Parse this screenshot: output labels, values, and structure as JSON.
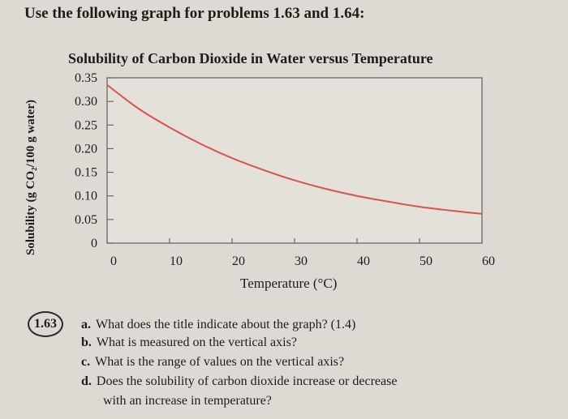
{
  "heading": "Use the following graph for problems 1.63 and 1.64:",
  "chart_data": {
    "type": "line",
    "title": "Solubility of Carbon Dioxide in Water versus Temperature",
    "xlabel": "Temperature (°C)",
    "ylabel": "Solubility (g CO₂/100 g water)",
    "xlim": [
      0,
      60
    ],
    "ylim": [
      0,
      0.35
    ],
    "x_ticks": [
      "0",
      "10",
      "20",
      "30",
      "40",
      "50",
      "60"
    ],
    "y_ticks": [
      "0",
      "0.05",
      "0.10",
      "0.15",
      "0.20",
      "0.25",
      "0.30",
      "0.35"
    ],
    "grid": false,
    "series": [
      {
        "color": "#d9534f",
        "x": [
          0,
          5,
          10,
          15,
          20,
          25,
          30,
          35,
          40,
          45,
          50,
          55,
          60
        ],
        "y": [
          0.335,
          0.285,
          0.245,
          0.21,
          0.18,
          0.155,
          0.133,
          0.115,
          0.1,
          0.088,
          0.077,
          0.069,
          0.062
        ]
      }
    ]
  },
  "problem": {
    "number": "1.63",
    "questions": [
      {
        "letter": "a.",
        "text": "What does the title indicate about the graph? (1.4)"
      },
      {
        "letter": "b.",
        "text": "What is measured on the vertical axis?"
      },
      {
        "letter": "c.",
        "text": "What is the range of values on the vertical axis?"
      },
      {
        "letter": "d.",
        "text": "Does the solubility of carbon dioxide increase or decrease"
      },
      {
        "letter": "",
        "text": "with an increase in temperature?"
      }
    ]
  }
}
